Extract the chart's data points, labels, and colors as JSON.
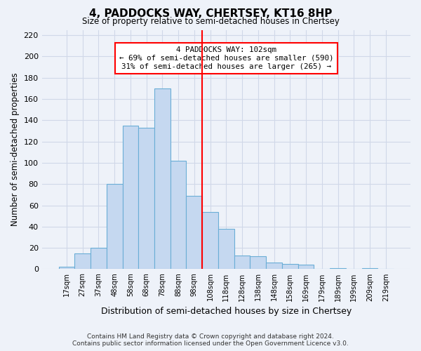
{
  "title": "4, PADDOCKS WAY, CHERTSEY, KT16 8HP",
  "subtitle": "Size of property relative to semi-detached houses in Chertsey",
  "xlabel": "Distribution of semi-detached houses by size in Chertsey",
  "ylabel": "Number of semi-detached properties",
  "bar_labels": [
    "17sqm",
    "27sqm",
    "37sqm",
    "48sqm",
    "58sqm",
    "68sqm",
    "78sqm",
    "88sqm",
    "98sqm",
    "108sqm",
    "118sqm",
    "128sqm",
    "138sqm",
    "148sqm",
    "158sqm",
    "169sqm",
    "179sqm",
    "189sqm",
    "199sqm",
    "209sqm",
    "219sqm"
  ],
  "bar_values": [
    2,
    15,
    20,
    80,
    135,
    133,
    170,
    102,
    69,
    54,
    38,
    13,
    12,
    6,
    5,
    4,
    0,
    1,
    0,
    1,
    0
  ],
  "bar_color": "#c5d8f0",
  "bar_edge_color": "#6aaed6",
  "property_line_x": 8.5,
  "property_sqm": 102,
  "pct_smaller": 69,
  "pct_larger": 31,
  "count_smaller": 590,
  "count_larger": 265,
  "ylim": [
    0,
    225
  ],
  "yticks": [
    0,
    20,
    40,
    60,
    80,
    100,
    120,
    140,
    160,
    180,
    200,
    220
  ],
  "annotation_line1": "4 PADDOCKS WAY: 102sqm",
  "annotation_line2": "← 69% of semi-detached houses are smaller (590)",
  "annotation_line3": "31% of semi-detached houses are larger (265) →",
  "bg_color": "#eef2f9",
  "grid_color": "#d0d8e8",
  "footer1": "Contains HM Land Registry data © Crown copyright and database right 2024.",
  "footer2": "Contains public sector information licensed under the Open Government Licence v3.0."
}
